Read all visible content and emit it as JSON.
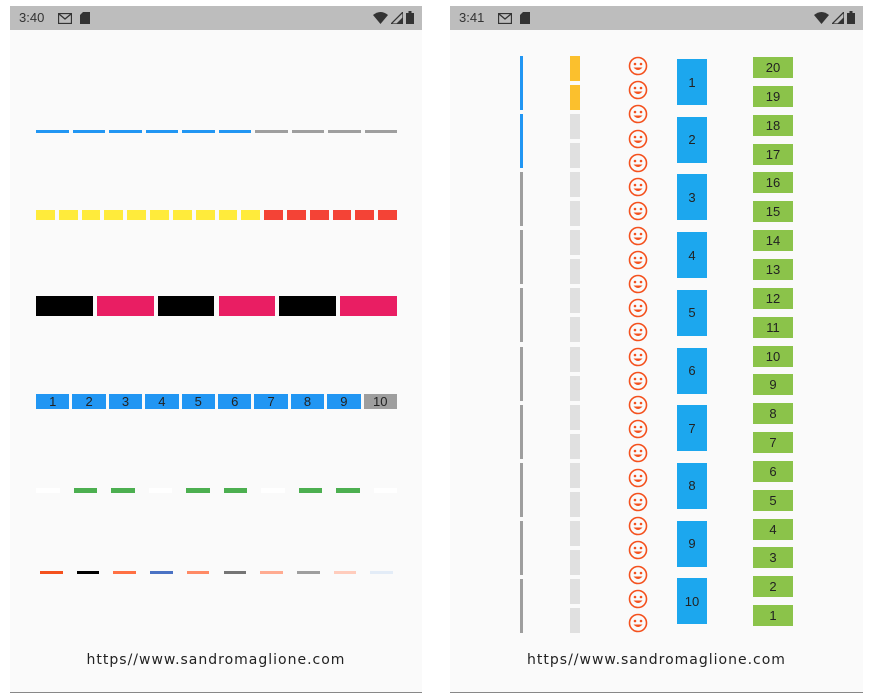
{
  "left_phone": {
    "time": "3:40",
    "footer": "https//www.sandromaglione.com",
    "rows": [
      {
        "name": "blue-gray-dashes",
        "colors": [
          "#2196f3",
          "#2196f3",
          "#2196f3",
          "#2196f3",
          "#2196f3",
          "#2196f3",
          "#9e9e9e",
          "#9e9e9e",
          "#9e9e9e",
          "#9e9e9e"
        ]
      },
      {
        "name": "yellow-red-dashes",
        "colors": [
          "#ffeb3b",
          "#ffeb3b",
          "#ffeb3b",
          "#ffeb3b",
          "#ffeb3b",
          "#ffeb3b",
          "#ffeb3b",
          "#ffeb3b",
          "#ffeb3b",
          "#ffeb3b",
          "#f44336",
          "#f44336",
          "#f44336",
          "#f44336",
          "#f44336",
          "#f44336"
        ]
      },
      {
        "name": "black-pink-blocks",
        "colors": [
          "#000000",
          "#e91e63",
          "#000000",
          "#e91e63",
          "#000000",
          "#e91e63"
        ]
      },
      {
        "name": "numbered-dashes",
        "labels": [
          "1",
          "2",
          "3",
          "4",
          "5",
          "6",
          "7",
          "8",
          "9",
          "10"
        ],
        "colors": [
          "#2196f3",
          "#2196f3",
          "#2196f3",
          "#2196f3",
          "#2196f3",
          "#2196f3",
          "#2196f3",
          "#2196f3",
          "#2196f3",
          "#9e9e9e"
        ]
      },
      {
        "name": "green-white-dashes",
        "colors": [
          "#ffffff",
          "#4caf50",
          "#4caf50",
          "#ffffff",
          "#4caf50",
          "#4caf50",
          "#ffffff",
          "#4caf50",
          "#4caf50",
          "#ffffff"
        ]
      },
      {
        "name": "multicolor-dashes",
        "colors": [
          "#f4511e",
          "#000000",
          "#ff7043",
          "#4a72c4",
          "#ff8a65",
          "#757575",
          "#ffab91",
          "#9e9e9e",
          "#ffccbc",
          "#e3ecf7"
        ]
      }
    ]
  },
  "right_phone": {
    "time": "3:41",
    "footer": "https//www.sandromaglione.com",
    "col1_colors": [
      "#2196f3",
      "#2196f3",
      "#9e9e9e",
      "#9e9e9e",
      "#9e9e9e",
      "#9e9e9e",
      "#9e9e9e",
      "#9e9e9e",
      "#9e9e9e",
      "#9e9e9e"
    ],
    "col2_colors": [
      "#fbc02d",
      "#fbc02d",
      "#e0e0e0",
      "#e0e0e0",
      "#e0e0e0",
      "#e0e0e0",
      "#e0e0e0",
      "#e0e0e0",
      "#e0e0e0",
      "#e0e0e0",
      "#e0e0e0",
      "#e0e0e0",
      "#e0e0e0",
      "#e0e0e0",
      "#e0e0e0",
      "#e0e0e0",
      "#e0e0e0",
      "#e0e0e0",
      "#e0e0e0",
      "#e0e0e0"
    ],
    "smiley_count": 24,
    "smiley_color": "#f4511e",
    "blue_labels": [
      "1",
      "2",
      "3",
      "4",
      "5",
      "6",
      "7",
      "8",
      "9",
      "10"
    ],
    "green_labels": [
      "20",
      "19",
      "18",
      "17",
      "16",
      "15",
      "14",
      "13",
      "12",
      "11",
      "10",
      "9",
      "8",
      "7",
      "6",
      "5",
      "4",
      "3",
      "2",
      "1"
    ]
  }
}
